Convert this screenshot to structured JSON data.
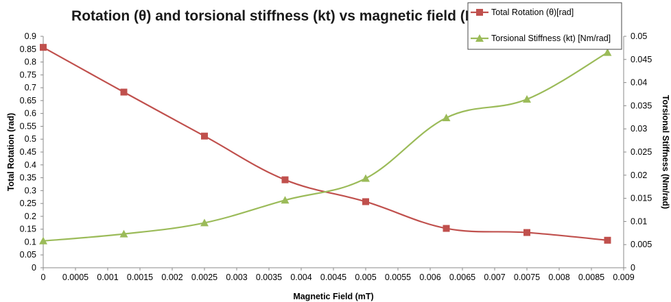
{
  "chart_data": {
    "type": "line",
    "title": "Rotation (θ) and torsional stiffness (kt) vs magnetic field (B)",
    "xlabel": "Magnetic Field (mT)",
    "ylabel_left": "Total Rotation (rad)",
    "ylabel_right": "Torsional Stiffness (Nm/rad)",
    "xlim": [
      0,
      0.009
    ],
    "ylim_left": [
      0,
      0.9
    ],
    "ylim_right": [
      0,
      0.05
    ],
    "x_ticks": [
      "0",
      "0.0005",
      "0.001",
      "0.0015",
      "0.002",
      "0.0025",
      "0.003",
      "0.0035",
      "0.004",
      "0.0045",
      "0.005",
      "0.0055",
      "0.006",
      "0.0065",
      "0.007",
      "0.0075",
      "0.008",
      "0.0085",
      "0.009"
    ],
    "y_left_ticks": [
      "0",
      "0.05",
      "0.1",
      "0.15",
      "0.2",
      "0.25",
      "0.3",
      "0.35",
      "0.4",
      "0.45",
      "0.5",
      "0.55",
      "0.6",
      "0.65",
      "0.7",
      "0.75",
      "0.8",
      "0.85",
      "0.9"
    ],
    "y_right_ticks": [
      "0",
      "0.005",
      "0.01",
      "0.015",
      "0.02",
      "0.025",
      "0.03",
      "0.035",
      "0.04",
      "0.045",
      "0.05"
    ],
    "legend_position": "top-right",
    "grid": false,
    "series": [
      {
        "name": "Total Rotation (θ)[rad]",
        "axis": "left",
        "marker": "square",
        "color": "#c0504d",
        "x": [
          0,
          0.00125,
          0.0025,
          0.00375,
          0.005,
          0.00625,
          0.0075,
          0.00875
        ],
        "y": [
          0.857,
          0.683,
          0.512,
          0.342,
          0.257,
          0.153,
          0.137,
          0.107
        ]
      },
      {
        "name": "Torsional Stiffness (kt) [Nm/rad]",
        "axis": "right",
        "marker": "triangle",
        "color": "#9bbb59",
        "x": [
          0,
          0.00125,
          0.0025,
          0.00375,
          0.005,
          0.00625,
          0.0075,
          0.00875
        ],
        "y": [
          0.0058,
          0.0073,
          0.0097,
          0.0146,
          0.0193,
          0.0324,
          0.0364,
          0.0465
        ]
      }
    ]
  }
}
